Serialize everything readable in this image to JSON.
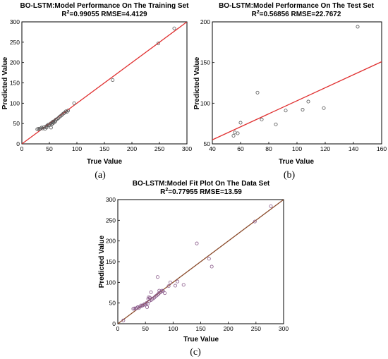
{
  "chart_data": [
    {
      "id": "a",
      "type": "scatter",
      "caption": "(a)",
      "title": "BO-LSTM:Model Performance On The Training Set",
      "subtitle_r2_label": "R",
      "subtitle_r2_sup": "2",
      "subtitle_rest": "=0.99055 RMSE=4.4129",
      "xlabel": "True Value",
      "ylabel": "Predicted Value",
      "xlim": [
        0,
        300
      ],
      "ylim": [
        0,
        300
      ],
      "xticks": [
        0,
        50,
        100,
        150,
        200,
        250,
        300
      ],
      "yticks": [
        0,
        50,
        100,
        150,
        200,
        250,
        300
      ],
      "fit_line": [
        [
          0,
          0
        ],
        [
          300,
          300
        ]
      ],
      "line_color": "#e03030",
      "marker_color": "#555555",
      "points": [
        [
          28,
          36
        ],
        [
          30,
          37
        ],
        [
          32,
          36
        ],
        [
          34,
          38
        ],
        [
          36,
          40
        ],
        [
          38,
          38
        ],
        [
          40,
          41
        ],
        [
          42,
          37
        ],
        [
          44,
          43
        ],
        [
          45,
          40
        ],
        [
          46,
          45
        ],
        [
          48,
          47
        ],
        [
          50,
          46
        ],
        [
          52,
          50
        ],
        [
          53,
          40
        ],
        [
          54,
          48
        ],
        [
          55,
          53
        ],
        [
          56,
          50
        ],
        [
          57,
          55
        ],
        [
          58,
          52
        ],
        [
          60,
          57
        ],
        [
          61,
          55
        ],
        [
          62,
          60
        ],
        [
          64,
          61
        ],
        [
          66,
          63
        ],
        [
          68,
          66
        ],
        [
          70,
          68
        ],
        [
          72,
          70
        ],
        [
          74,
          73
        ],
        [
          76,
          75
        ],
        [
          78,
          77
        ],
        [
          80,
          80
        ],
        [
          82,
          79
        ],
        [
          84,
          82
        ],
        [
          95,
          100
        ],
        [
          165,
          157
        ],
        [
          248,
          247
        ],
        [
          277,
          284
        ]
      ]
    },
    {
      "id": "b",
      "type": "scatter",
      "caption": "(b)",
      "title": "BO-LSTM:Model Performance On The Test Set",
      "subtitle_r2_label": "R",
      "subtitle_r2_sup": "2",
      "subtitle_rest": "=0.56856 RMSE=22.7672",
      "xlabel": "True Value",
      "ylabel": "Predicted Value",
      "xlim": [
        40,
        160
      ],
      "ylim": [
        50,
        200
      ],
      "xticks": [
        40,
        60,
        80,
        100,
        120,
        140,
        160
      ],
      "yticks": [
        50,
        100,
        150,
        200
      ],
      "fit_line": [
        [
          40,
          55
        ],
        [
          160,
          151
        ]
      ],
      "line_color": "#e03030",
      "marker_color": "#555555",
      "points": [
        [
          55,
          60
        ],
        [
          56,
          64
        ],
        [
          58,
          63
        ],
        [
          60,
          76
        ],
        [
          72,
          113
        ],
        [
          75,
          80
        ],
        [
          85,
          74
        ],
        [
          92,
          91
        ],
        [
          104,
          92
        ],
        [
          108,
          102
        ],
        [
          119,
          94
        ],
        [
          143,
          194
        ]
      ]
    },
    {
      "id": "c",
      "type": "scatter",
      "caption": "(c)",
      "title": "BO-LSTM:Model Fit Plot On The Data Set",
      "subtitle_r2_label": "R",
      "subtitle_r2_sup": "2",
      "subtitle_rest": "=0.77955 RMSE=13.59",
      "xlabel": "True Value",
      "ylabel": "Predicted Value",
      "xlim": [
        0,
        300
      ],
      "ylim": [
        0,
        300
      ],
      "xticks": [
        0,
        50,
        100,
        150,
        200,
        250,
        300
      ],
      "yticks": [
        0,
        50,
        100,
        150,
        200,
        250,
        300
      ],
      "fit_line": [
        [
          0,
          0
        ],
        [
          300,
          300
        ]
      ],
      "line_color": "#8a4a2a",
      "marker_color": "#8a5a8a",
      "points": [
        [
          10,
          8
        ],
        [
          28,
          36
        ],
        [
          30,
          37
        ],
        [
          32,
          36
        ],
        [
          34,
          38
        ],
        [
          36,
          40
        ],
        [
          38,
          38
        ],
        [
          40,
          41
        ],
        [
          42,
          44
        ],
        [
          44,
          43
        ],
        [
          46,
          45
        ],
        [
          48,
          47
        ],
        [
          50,
          46
        ],
        [
          52,
          50
        ],
        [
          53,
          40
        ],
        [
          54,
          48
        ],
        [
          55,
          60
        ],
        [
          56,
          64
        ],
        [
          57,
          55
        ],
        [
          58,
          63
        ],
        [
          60,
          57
        ],
        [
          60,
          76
        ],
        [
          62,
          60
        ],
        [
          64,
          61
        ],
        [
          66,
          63
        ],
        [
          68,
          66
        ],
        [
          70,
          68
        ],
        [
          72,
          113
        ],
        [
          72,
          70
        ],
        [
          74,
          73
        ],
        [
          75,
          80
        ],
        [
          76,
          75
        ],
        [
          78,
          77
        ],
        [
          80,
          80
        ],
        [
          82,
          79
        ],
        [
          85,
          74
        ],
        [
          92,
          91
        ],
        [
          95,
          100
        ],
        [
          104,
          92
        ],
        [
          108,
          102
        ],
        [
          119,
          94
        ],
        [
          143,
          194
        ],
        [
          165,
          157
        ],
        [
          170,
          138
        ],
        [
          248,
          247
        ],
        [
          277,
          284
        ]
      ]
    }
  ]
}
